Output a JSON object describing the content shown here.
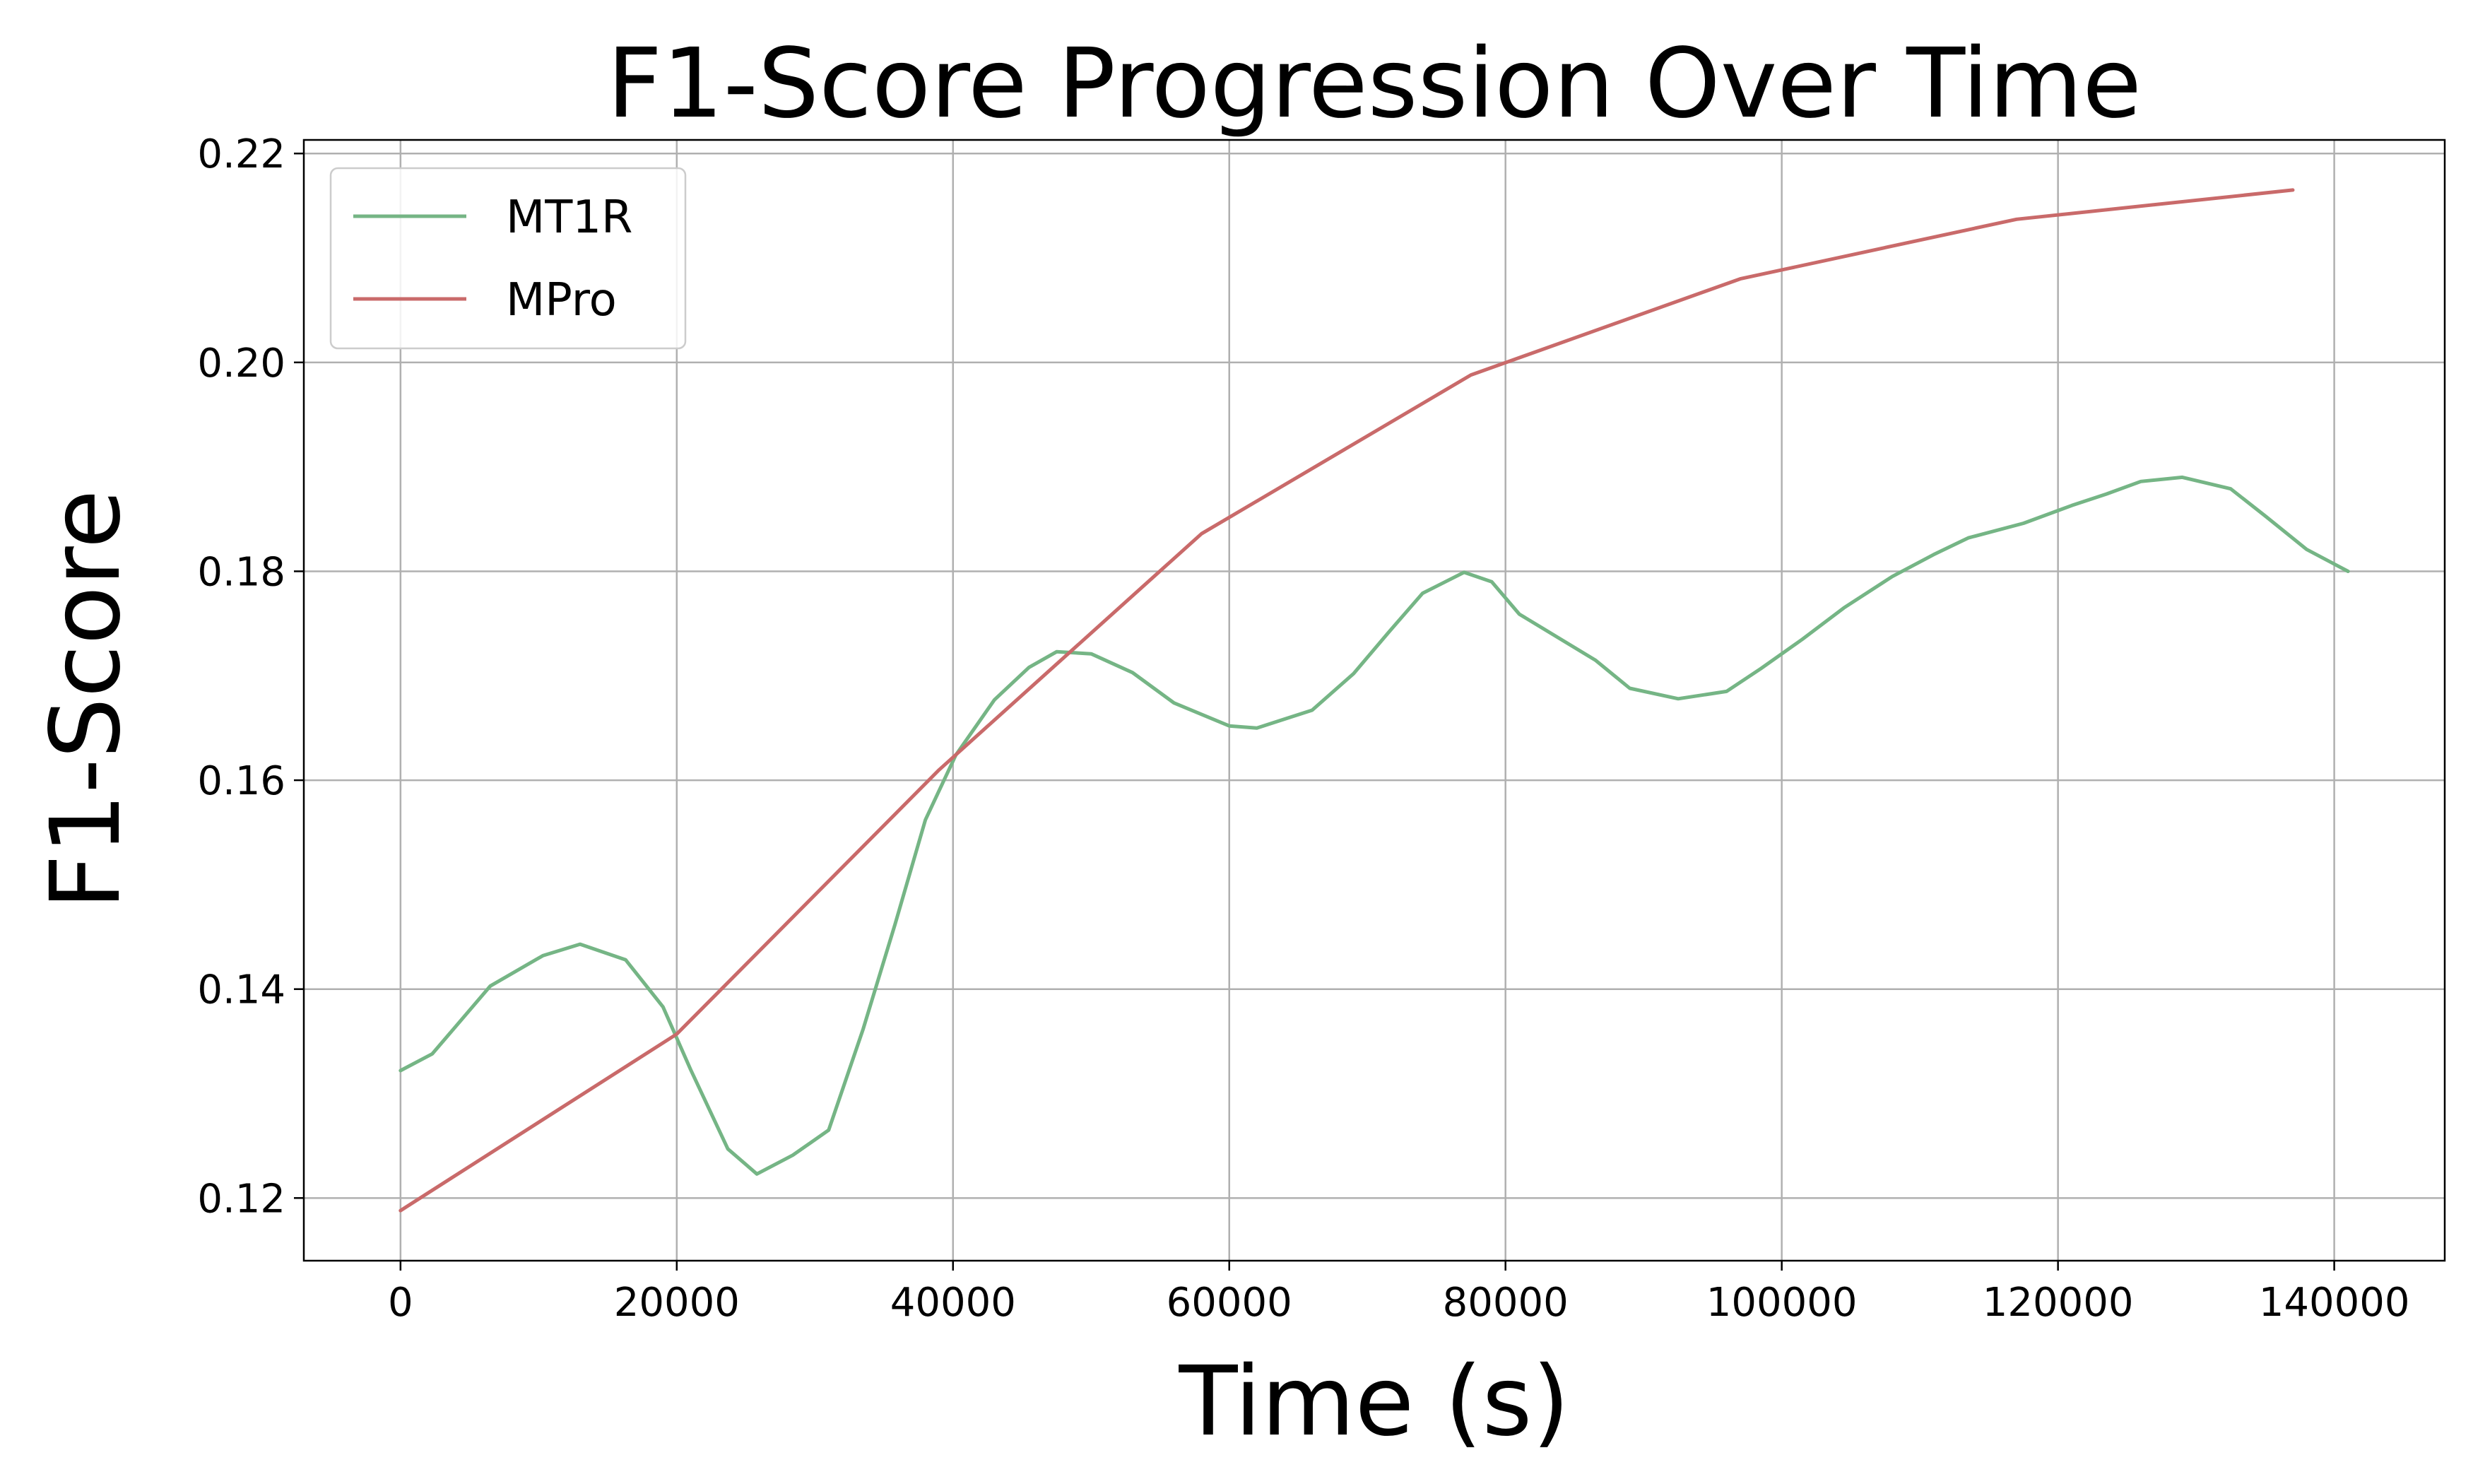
{
  "chart_data": {
    "type": "line",
    "title": "F1-Score Progression Over Time",
    "xlabel": "Time (s)",
    "ylabel": "F1-Score",
    "xlim": [
      -7000,
      148000
    ],
    "ylim": [
      0.114,
      0.2213
    ],
    "xticks": [
      0,
      20000,
      40000,
      60000,
      80000,
      100000,
      120000,
      140000
    ],
    "xtick_labels": [
      "0",
      "20000",
      "40000",
      "60000",
      "80000",
      "100000",
      "120000",
      "140000"
    ],
    "yticks": [
      0.12,
      0.14,
      0.16,
      0.18,
      0.2,
      0.22
    ],
    "ytick_labels": [
      "0.12",
      "0.14",
      "0.16",
      "0.18",
      "0.20",
      "0.22"
    ],
    "grid": true,
    "legend_position": "top-left",
    "series": [
      {
        "name": "MT1R",
        "color": "#75b585",
        "x": [
          0,
          2300,
          6500,
          10300,
          13000,
          16300,
          19000,
          21000,
          23700,
          25800,
          28400,
          31000,
          33500,
          35800,
          38000,
          40200,
          43000,
          45500,
          47500,
          50000,
          53000,
          56000,
          60000,
          62000,
          66000,
          69000,
          71500,
          74000,
          77000,
          79000,
          81000,
          83500,
          86500,
          89000,
          92500,
          96000,
          98500,
          101500,
          104500,
          108000,
          111000,
          113500,
          117500,
          121000,
          123500,
          126000,
          129000,
          132500,
          135000,
          138000,
          141000
        ],
        "y": [
          0.1322,
          0.1338,
          0.1403,
          0.1432,
          0.1443,
          0.1428,
          0.1383,
          0.1323,
          0.1247,
          0.1223,
          0.1241,
          0.1265,
          0.1362,
          0.1462,
          0.1562,
          0.1624,
          0.1677,
          0.1708,
          0.1723,
          0.1721,
          0.1703,
          0.1674,
          0.1652,
          0.165,
          0.1667,
          0.1702,
          0.1741,
          0.1779,
          0.1799,
          0.179,
          0.1759,
          0.1739,
          0.1715,
          0.1688,
          0.1678,
          0.1685,
          0.1707,
          0.1735,
          0.1765,
          0.1795,
          0.1816,
          0.1832,
          0.1846,
          0.1863,
          0.1874,
          0.1886,
          0.189,
          0.1879,
          0.1853,
          0.1821,
          0.18
        ]
      },
      {
        "name": "MPro",
        "color": "#c96a6a",
        "x": [
          0,
          20000,
          39000,
          58000,
          77500,
          97000,
          117000,
          137000
        ],
        "y": [
          0.1188,
          0.1357,
          0.161,
          0.1836,
          0.1988,
          0.208,
          0.2137,
          0.2165
        ]
      }
    ]
  }
}
